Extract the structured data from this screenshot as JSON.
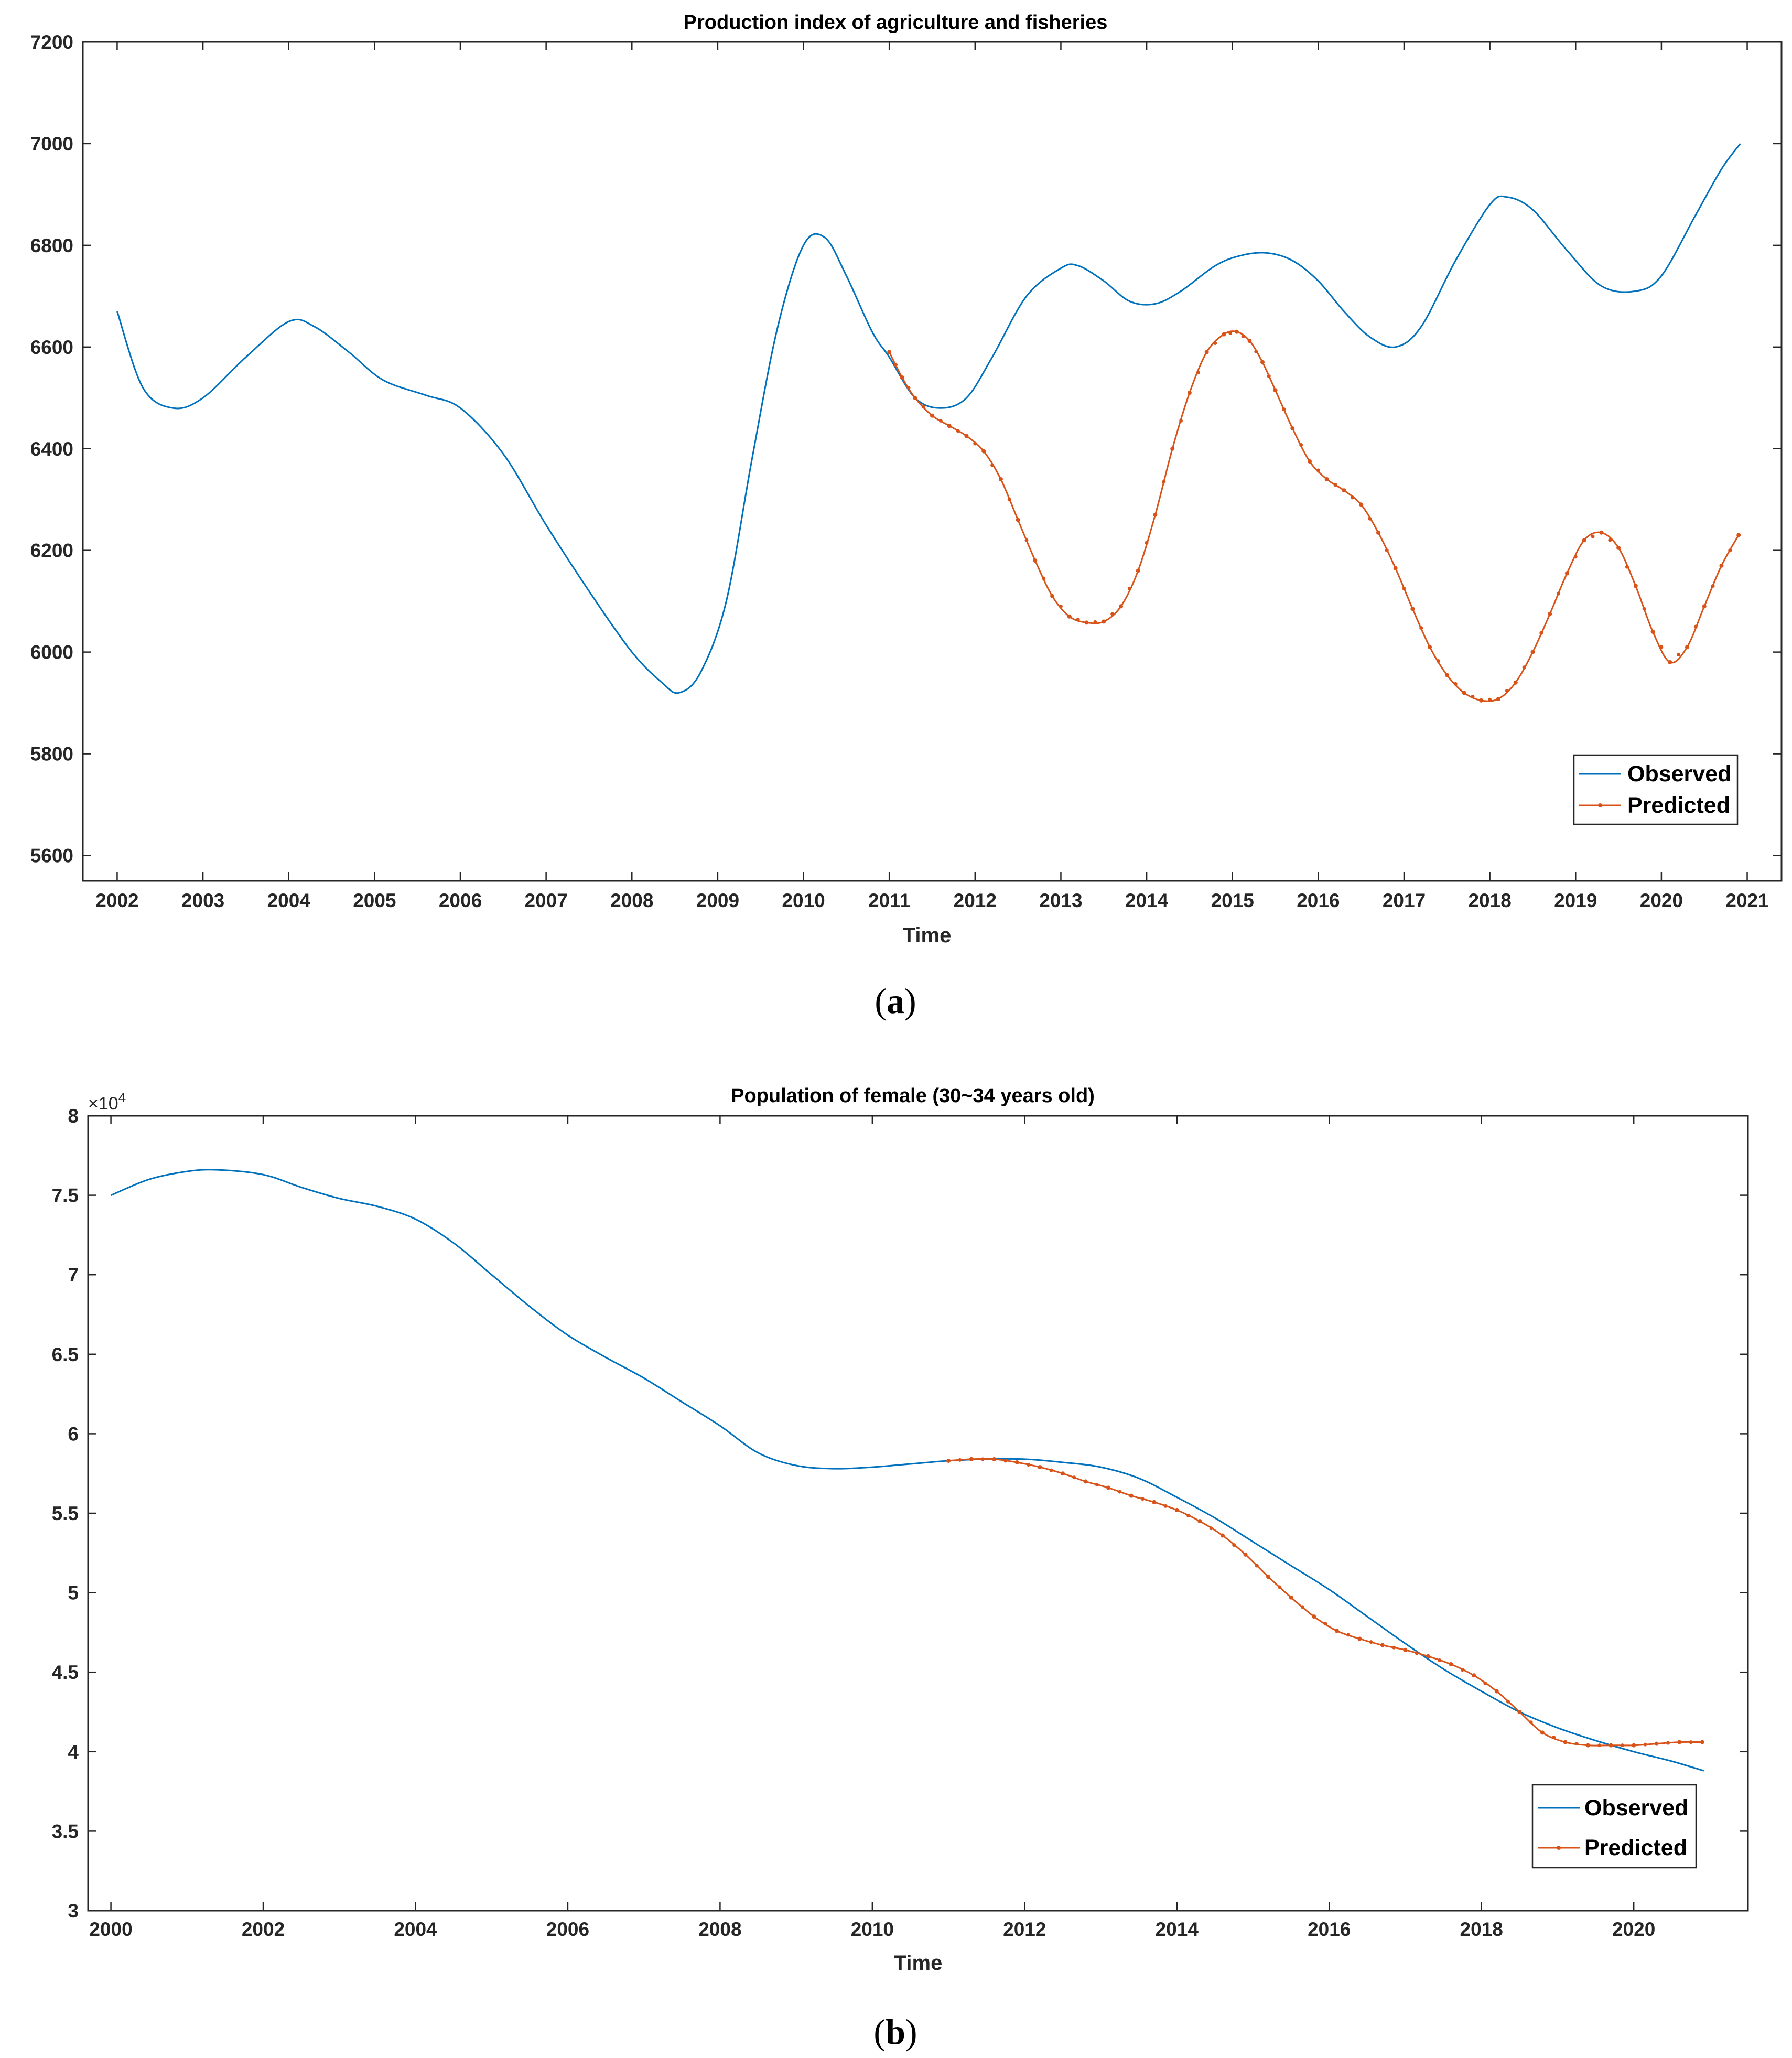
{
  "colors": {
    "observed": "#0072BD",
    "predicted": "#D95319",
    "axis": "#262626"
  },
  "chart_data": [
    {
      "type": "line",
      "title": "Production index of agriculture and fisheries",
      "xlabel": "Time",
      "ylabel": "",
      "caption_letter": "a",
      "xlim": [
        2001.6,
        2021.4
      ],
      "ylim": [
        5550,
        7200
      ],
      "xticks": [
        2002,
        2003,
        2004,
        2005,
        2006,
        2007,
        2008,
        2009,
        2010,
        2011,
        2012,
        2013,
        2014,
        2015,
        2016,
        2017,
        2018,
        2019,
        2020,
        2021
      ],
      "xtick_labels": [
        "2002",
        "2003",
        "2004",
        "2005",
        "2006",
        "2007",
        "2008",
        "2009",
        "2010",
        "2011",
        "2012",
        "2013",
        "2014",
        "2015",
        "2016",
        "2017",
        "2018",
        "2019",
        "2020",
        "2021"
      ],
      "yticks": [
        5600,
        5800,
        6000,
        6200,
        6400,
        6600,
        6800,
        7000,
        7200
      ],
      "ytick_labels": [
        "5600",
        "5800",
        "6000",
        "6200",
        "6400",
        "6600",
        "6800",
        "7000",
        "7200"
      ],
      "legend": {
        "position": "bottom-right",
        "entries": [
          "Observed",
          "Predicted"
        ]
      },
      "series": [
        {
          "name": "Observed",
          "style": "line",
          "x": [
            2002.0,
            2002.3,
            2002.65,
            2003.0,
            2003.5,
            2004.0,
            2004.3,
            2004.7,
            2005.1,
            2005.6,
            2006.0,
            2006.5,
            2007.0,
            2007.5,
            2008.0,
            2008.35,
            2008.55,
            2008.8,
            2009.1,
            2009.4,
            2009.7,
            2010.0,
            2010.25,
            2010.5,
            2010.8,
            2011.0,
            2011.3,
            2011.6,
            2011.9,
            2012.2,
            2012.6,
            2013.0,
            2013.2,
            2013.5,
            2013.8,
            2014.1,
            2014.4,
            2014.8,
            2015.1,
            2015.4,
            2015.7,
            2016.0,
            2016.3,
            2016.6,
            2016.9,
            2017.2,
            2017.6,
            2018.0,
            2018.2,
            2018.5,
            2018.9,
            2019.3,
            2019.7,
            2020.0,
            2020.4,
            2020.7,
            2020.92
          ],
          "y": [
            6670,
            6520,
            6480,
            6500,
            6580,
            6650,
            6640,
            6590,
            6535,
            6505,
            6480,
            6390,
            6250,
            6120,
            6000,
            5940,
            5920,
            5960,
            6100,
            6380,
            6640,
            6800,
            6815,
            6740,
            6630,
            6580,
            6500,
            6480,
            6500,
            6580,
            6700,
            6755,
            6760,
            6730,
            6690,
            6685,
            6710,
            6760,
            6780,
            6785,
            6770,
            6730,
            6670,
            6620,
            6600,
            6640,
            6770,
            6880,
            6895,
            6870,
            6790,
            6720,
            6710,
            6740,
            6860,
            6950,
            7000
          ]
        },
        {
          "name": "Predicted",
          "style": "line-dots",
          "x": [
            2011.0,
            2011.15,
            2011.3,
            2011.5,
            2011.7,
            2011.9,
            2012.1,
            2012.3,
            2012.5,
            2012.7,
            2012.9,
            2013.1,
            2013.3,
            2013.5,
            2013.7,
            2013.9,
            2014.1,
            2014.3,
            2014.5,
            2014.7,
            2014.9,
            2015.05,
            2015.2,
            2015.35,
            2015.5,
            2015.7,
            2015.9,
            2016.1,
            2016.3,
            2016.5,
            2016.7,
            2016.9,
            2017.1,
            2017.3,
            2017.5,
            2017.7,
            2017.9,
            2018.1,
            2018.3,
            2018.5,
            2018.7,
            2018.9,
            2019.1,
            2019.3,
            2019.5,
            2019.7,
            2019.9,
            2020.1,
            2020.3,
            2020.5,
            2020.7,
            2020.9
          ],
          "y": [
            6590,
            6540,
            6500,
            6465,
            6445,
            6425,
            6395,
            6340,
            6260,
            6180,
            6110,
            6070,
            6058,
            6060,
            6090,
            6160,
            6270,
            6400,
            6510,
            6590,
            6625,
            6630,
            6612,
            6570,
            6515,
            6440,
            6375,
            6340,
            6318,
            6290,
            6235,
            6165,
            6085,
            6010,
            5955,
            5920,
            5905,
            5908,
            5940,
            6000,
            6075,
            6155,
            6220,
            6235,
            6205,
            6130,
            6040,
            5980,
            6010,
            6090,
            6170,
            6230
          ]
        }
      ]
    },
    {
      "type": "line",
      "title": "Population of female (30~34 years old)",
      "xlabel": "Time",
      "ylabel": "",
      "caption_letter": "b",
      "exponent_label": "×10",
      "exponent_power": "4",
      "xlim": [
        1999.7,
        2021.5
      ],
      "ylim": [
        3,
        8
      ],
      "xticks": [
        2000,
        2002,
        2004,
        2006,
        2008,
        2010,
        2012,
        2014,
        2016,
        2018,
        2020
      ],
      "xtick_labels": [
        "2000",
        "2002",
        "2004",
        "2006",
        "2008",
        "2010",
        "2012",
        "2014",
        "2016",
        "2018",
        "2020"
      ],
      "yticks": [
        3,
        3.5,
        4,
        4.5,
        5,
        5.5,
        6,
        6.5,
        7,
        7.5,
        8
      ],
      "ytick_labels": [
        "3",
        "3.5",
        "4",
        "4.5",
        "5",
        "5.5",
        "6",
        "6.5",
        "7",
        "7.5",
        "8"
      ],
      "legend": {
        "position": "bottom-right",
        "entries": [
          "Observed",
          "Predicted"
        ]
      },
      "series": [
        {
          "name": "Observed",
          "style": "line",
          "x": [
            2000.0,
            2000.5,
            2001.0,
            2001.4,
            2002.0,
            2002.5,
            2003.0,
            2003.5,
            2004.0,
            2004.5,
            2005.0,
            2005.5,
            2006.0,
            2006.5,
            2007.0,
            2007.5,
            2008.0,
            2008.5,
            2009.0,
            2009.5,
            2010.0,
            2010.5,
            2011.0,
            2011.5,
            2012.0,
            2012.5,
            2013.0,
            2013.5,
            2014.0,
            2014.5,
            2015.0,
            2015.5,
            2016.0,
            2016.5,
            2017.0,
            2017.5,
            2018.0,
            2018.5,
            2019.0,
            2019.5,
            2020.0,
            2020.5,
            2020.92
          ],
          "y": [
            7.5,
            7.6,
            7.65,
            7.66,
            7.63,
            7.55,
            7.48,
            7.43,
            7.35,
            7.2,
            7.0,
            6.8,
            6.62,
            6.48,
            6.35,
            6.2,
            6.05,
            5.88,
            5.8,
            5.78,
            5.79,
            5.81,
            5.83,
            5.84,
            5.84,
            5.82,
            5.79,
            5.72,
            5.6,
            5.47,
            5.32,
            5.17,
            5.02,
            4.85,
            4.68,
            4.52,
            4.38,
            4.25,
            4.15,
            4.07,
            4.0,
            3.94,
            3.88
          ]
        },
        {
          "name": "Predicted",
          "style": "line-dots",
          "x": [
            2011.0,
            2011.3,
            2011.6,
            2011.9,
            2012.2,
            2012.5,
            2012.8,
            2013.1,
            2013.4,
            2013.7,
            2014.0,
            2014.3,
            2014.6,
            2014.9,
            2015.2,
            2015.5,
            2015.8,
            2016.1,
            2016.4,
            2016.7,
            2017.0,
            2017.3,
            2017.6,
            2017.9,
            2018.2,
            2018.5,
            2018.8,
            2019.1,
            2019.4,
            2019.7,
            2020.0,
            2020.3,
            2020.6,
            2020.9
          ],
          "y": [
            5.83,
            5.84,
            5.84,
            5.82,
            5.79,
            5.75,
            5.7,
            5.66,
            5.61,
            5.57,
            5.52,
            5.45,
            5.36,
            5.24,
            5.1,
            4.97,
            4.85,
            4.76,
            4.71,
            4.67,
            4.64,
            4.6,
            4.55,
            4.48,
            4.38,
            4.25,
            4.12,
            4.06,
            4.04,
            4.04,
            4.04,
            4.05,
            4.06,
            4.06
          ]
        }
      ]
    }
  ]
}
